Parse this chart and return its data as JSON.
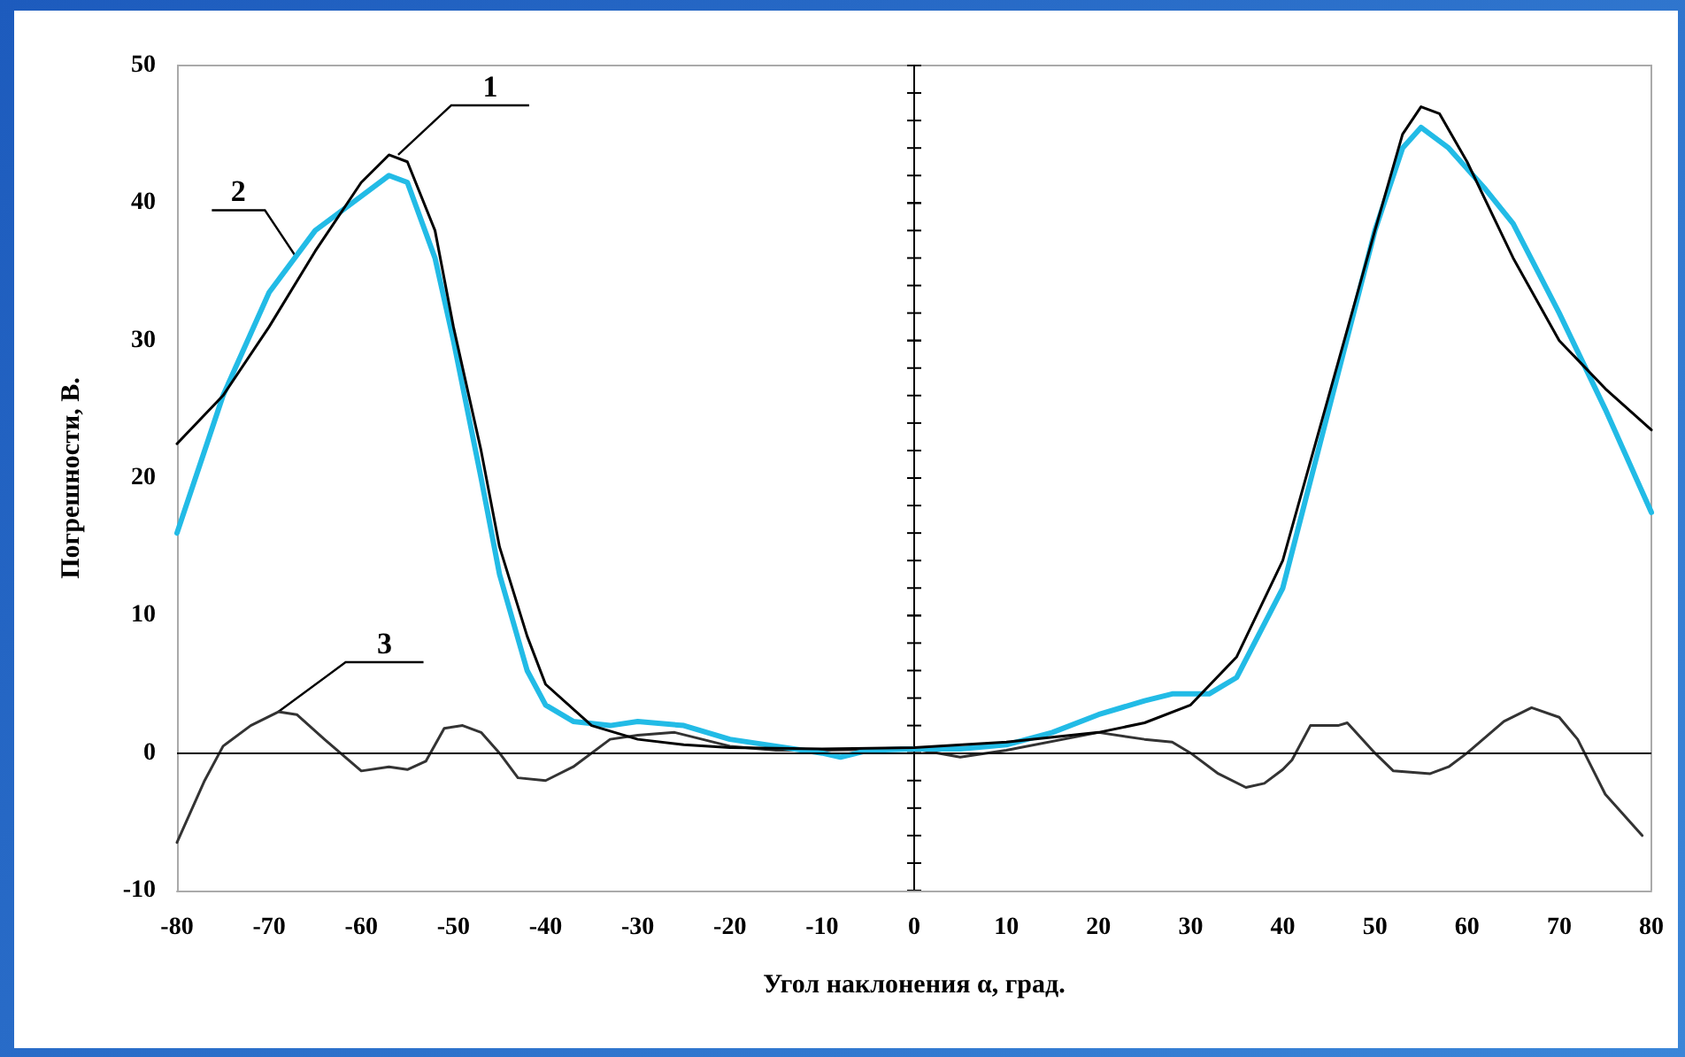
{
  "chart_data": {
    "type": "line",
    "xlabel": "Угол наклонения α, град.",
    "ylabel": "Погрешности, В.",
    "xlim": [
      -80,
      80
    ],
    "xticks": [
      -80,
      -70,
      -60,
      -50,
      -40,
      -30,
      -20,
      -10,
      0,
      10,
      20,
      30,
      40,
      50,
      60,
      70,
      80
    ],
    "ylim": [
      -10,
      50
    ],
    "yticks": [
      -10,
      0,
      10,
      20,
      30,
      40,
      50
    ],
    "marker": "none",
    "line_style": "solid",
    "ref_lines": [
      {
        "axis": "y",
        "value": 0,
        "color": "#000000"
      }
    ],
    "annotations": [
      {
        "text": "1",
        "x": -56,
        "y": 43.5
      },
      {
        "text": "2",
        "x": -67,
        "y": 36
      },
      {
        "text": "3",
        "x": -69,
        "y": 3
      }
    ],
    "series": [
      {
        "color": "#000000",
        "x": [
          -80,
          -75,
          -70,
          -65,
          -60,
          -57,
          -55,
          -52,
          -50,
          -47,
          -45,
          -42,
          -40,
          -35,
          -30,
          -25,
          -20,
          -10,
          0,
          10,
          20,
          25,
          30,
          35,
          40,
          45,
          50,
          53,
          55,
          57,
          60,
          65,
          70,
          75,
          80
        ],
        "values": [
          22.5,
          26,
          31,
          36.5,
          41.5,
          43.5,
          43,
          38,
          31,
          22,
          15,
          8.5,
          5,
          2,
          1,
          0.6,
          0.4,
          0.3,
          0.4,
          0.8,
          1.5,
          2.2,
          3.5,
          7,
          14,
          26,
          38,
          45,
          47,
          46.5,
          43,
          36,
          30,
          26.5,
          23.5
        ]
      },
      {
        "color": "#22bbe6",
        "x": [
          -80,
          -77,
          -75,
          -70,
          -65,
          -60,
          -57,
          -55,
          -52,
          -50,
          -47,
          -45,
          -42,
          -40,
          -37,
          -33,
          -30,
          -25,
          -20,
          -15,
          -10,
          -8,
          -5,
          0,
          5,
          10,
          15,
          20,
          25,
          28,
          32,
          35,
          40,
          45,
          50,
          53,
          55,
          58,
          62,
          65,
          70,
          75,
          80
        ],
        "values": [
          16,
          22,
          26,
          33.5,
          38,
          40.5,
          42,
          41.5,
          36,
          30,
          20,
          13,
          6,
          3.5,
          2.3,
          2,
          2.3,
          2,
          1,
          0.5,
          0,
          -0.3,
          0.2,
          0.3,
          0.3,
          0.6,
          1.5,
          2.8,
          3.8,
          4.3,
          4.3,
          5.5,
          12,
          25,
          38,
          44,
          45.5,
          44,
          41,
          38.5,
          32,
          25,
          17.5
        ]
      },
      {
        "color": "#333333",
        "x": [
          -80,
          -77,
          -75,
          -72,
          -69,
          -67,
          -64,
          -60,
          -57,
          -55,
          -53,
          -51,
          -49,
          -47,
          -45,
          -43,
          -40,
          -37,
          -33,
          -30,
          -26,
          -23,
          -20,
          -15,
          -10,
          0,
          5,
          10,
          20,
          25,
          28,
          30,
          33,
          36,
          38,
          40,
          41,
          43,
          46,
          47,
          50,
          52,
          56,
          58,
          60,
          64,
          67,
          70,
          72,
          75,
          79
        ],
        "values": [
          -6.5,
          -2,
          0.5,
          2,
          3,
          2.8,
          1,
          -1.3,
          -1,
          -1.2,
          -0.6,
          1.8,
          2,
          1.5,
          0,
          -1.8,
          -2,
          -1,
          1,
          1.3,
          1.5,
          1,
          0.5,
          0.2,
          0.2,
          0.3,
          -0.3,
          0.2,
          1.5,
          1,
          0.8,
          0,
          -1.5,
          -2.5,
          -2.2,
          -1.2,
          -0.5,
          2,
          2,
          2.2,
          0,
          -1.3,
          -1.5,
          -1,
          0,
          2.3,
          3.3,
          2.6,
          1,
          -3,
          -6
        ]
      }
    ]
  }
}
